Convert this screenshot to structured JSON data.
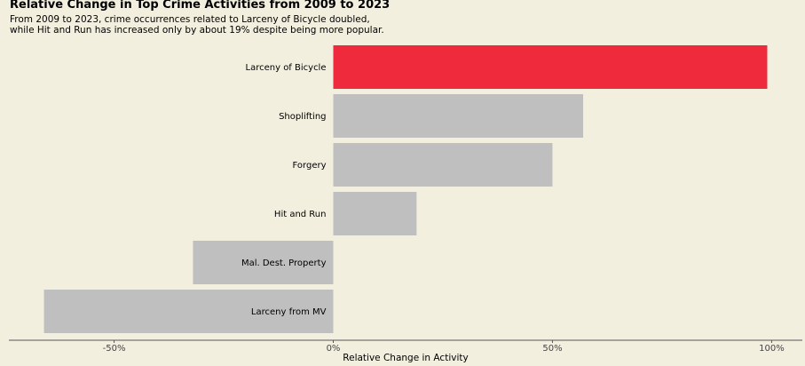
{
  "title": "Relative Change in Top Crime Activities from 2009 to 2023",
  "subtitle": "From 2009 to 2023, crime occurrences related to Larceny of Bicycle doubled,\nwhile Hit and Run has increased only by about 19% despite being more popular.",
  "colors": {
    "background": "#f3efdf",
    "highlight": "#ee2a3c",
    "default_bar": "#bfbfbf",
    "axis": "#555555"
  },
  "chart_data": {
    "type": "bar",
    "orientation": "horizontal",
    "categories": [
      "Larceny of Bicycle",
      "Shoplifting",
      "Forgery",
      "Hit and Run",
      "Mal. Dest. Property",
      "Larceny from MV"
    ],
    "values": [
      99,
      57,
      50,
      19,
      -32,
      -66
    ],
    "highlight": [
      "Larceny of Bicycle"
    ],
    "xlabel": "Relative Change in Activity",
    "ylabel": "",
    "xlim": [
      -74,
      107
    ],
    "xticks": [
      -50,
      0,
      50,
      100
    ],
    "xtick_labels": [
      "-50%",
      "0%",
      "50%",
      "100%"
    ],
    "grid": false
  }
}
